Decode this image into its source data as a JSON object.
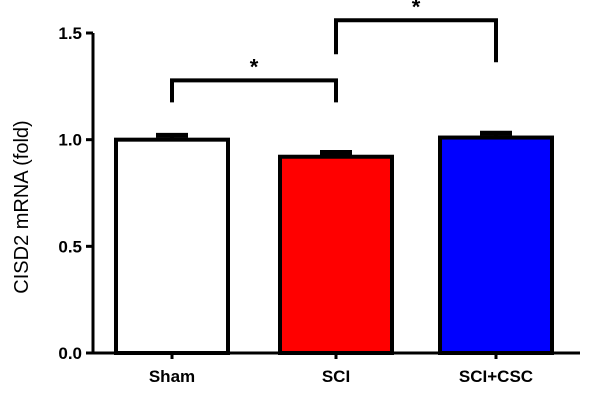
{
  "chart_data": {
    "type": "bar",
    "title": "",
    "xlabel": "",
    "ylabel": "CISD2 mRNA (fold)",
    "ylim": [
      0,
      1.5
    ],
    "yticks": [
      {
        "value": 0.0,
        "label": "0.0"
      },
      {
        "value": 0.5,
        "label": "0.5"
      },
      {
        "value": 1.0,
        "label": "1.0"
      },
      {
        "value": 1.5,
        "label": "1.5"
      }
    ],
    "categories": [
      "Sham",
      "SCI",
      "SCI+CSC"
    ],
    "values": [
      1.0,
      0.92,
      1.01
    ],
    "errors": [
      0.02,
      0.02,
      0.02
    ],
    "colors": [
      "#ffffff",
      "#ff0000",
      "#0000ff"
    ],
    "grid": false,
    "significance": [
      {
        "from": 0,
        "to": 1,
        "label": "*"
      },
      {
        "from": 1,
        "to": 2,
        "label": "*"
      }
    ]
  }
}
